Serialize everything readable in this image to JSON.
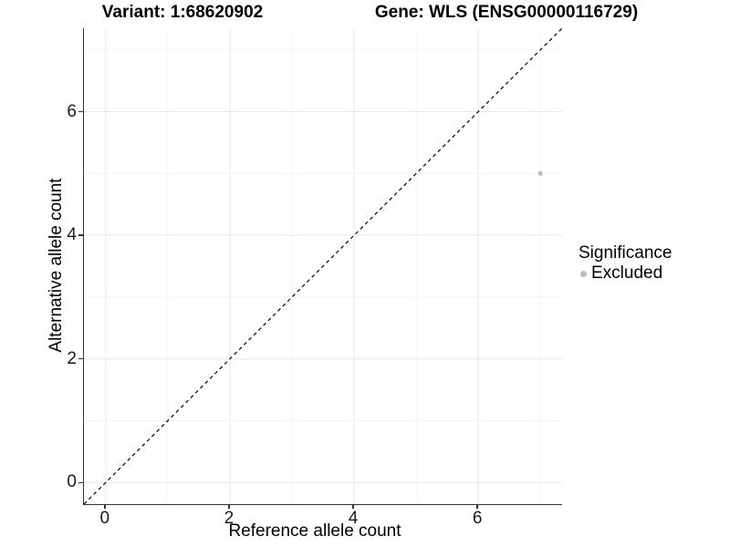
{
  "titles": {
    "variant": "Variant: 1:68620902",
    "gene": "Gene: WLS (ENSG00000116729)"
  },
  "chart_data": {
    "type": "scatter",
    "title_left": "Variant: 1:68620902",
    "title_right": "Gene: WLS (ENSG00000116729)",
    "xlabel": "Reference allele count",
    "ylabel": "Alternative allele count",
    "xlim": [
      -0.35,
      7.35
    ],
    "ylim": [
      -0.35,
      7.35
    ],
    "x_ticks": [
      0,
      2,
      4,
      6
    ],
    "y_ticks": [
      0,
      2,
      4,
      6
    ],
    "major_gridlines": [
      0,
      2,
      4,
      6
    ],
    "minor_gridlines": [
      1,
      3,
      5,
      7
    ],
    "grid": "on",
    "points": [
      {
        "x": 7,
        "y": 5,
        "series": "Excluded",
        "color": "#bdbdbd",
        "radius": 2.5
      }
    ],
    "reference_line": {
      "type": "identity",
      "from": [
        -0.35,
        -0.35
      ],
      "to": [
        7.35,
        7.35
      ],
      "style": "dashed",
      "color": "#000000"
    },
    "legend": {
      "position": "right",
      "title": "Significance",
      "entries": [
        {
          "label": "Excluded",
          "color": "#bdbdbd"
        }
      ]
    }
  },
  "colors": {
    "major_grid": "#e8e8e8",
    "minor_grid": "#f3f3f3",
    "axis_line": "#333333",
    "text": "#000000"
  }
}
